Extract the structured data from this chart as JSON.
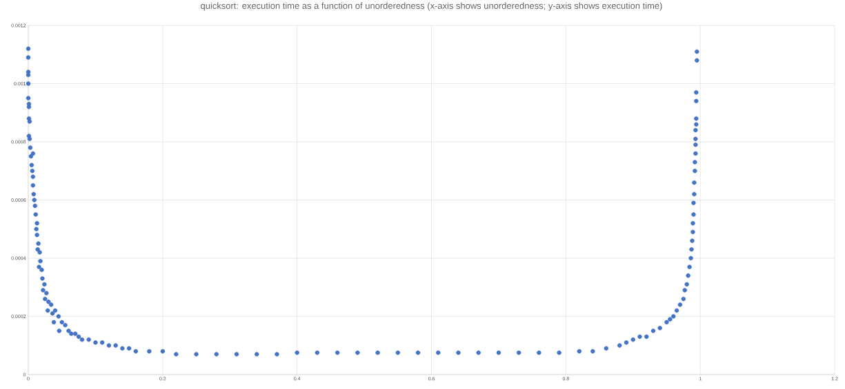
{
  "chart_data": {
    "type": "scatter",
    "title": "quicksort: execution time as a function of unorderedness (x-axis shows unorderedness; y-axis shows execution time)",
    "x": [
      0,
      0,
      0,
      0,
      0,
      0,
      0.001,
      0.001,
      0.001,
      0.002,
      0.001,
      0.002,
      0.003,
      0.004,
      0.007,
      0.005,
      0.006,
      0.007,
      0.007,
      0.008,
      0.009,
      0.01,
      0.011,
      0.013,
      0.012,
      0.013,
      0.015,
      0.014,
      0.017,
      0.018,
      0.016,
      0.02,
      0.021,
      0.024,
      0.022,
      0.027,
      0.025,
      0.03,
      0.034,
      0.029,
      0.036,
      0.04,
      0.045,
      0.038,
      0.05,
      0.055,
      0.046,
      0.06,
      0.064,
      0.07,
      0.075,
      0.08,
      0.09,
      0.1,
      0.11,
      0.12,
      0.13,
      0.14,
      0.15,
      0.16,
      0.18,
      0.2,
      0.22,
      0.25,
      0.28,
      0.31,
      0.34,
      0.37,
      0.4,
      0.43,
      0.46,
      0.49,
      0.52,
      0.55,
      0.58,
      0.61,
      0.64,
      0.67,
      0.7,
      0.73,
      0.76,
      0.79,
      0.82,
      0.84,
      0.86,
      0.88,
      0.89,
      0.9,
      0.91,
      0.92,
      0.93,
      0.94,
      0.95,
      0.955,
      0.96,
      0.965,
      0.97,
      0.975,
      0.977,
      0.98,
      0.982,
      0.984,
      0.986,
      0.987,
      0.988,
      0.989,
      0.989,
      0.99,
      0.99,
      0.991,
      0.991,
      0.992,
      0.992,
      0.993,
      0.993,
      0.993,
      0.993,
      0.994,
      0.994,
      0.994,
      0.994,
      0.995,
      0.995
    ],
    "values": [
      0.00112,
      0.00109,
      0.00104,
      0.00103,
      0.001,
      0.00095,
      0.00093,
      0.00092,
      0.00088,
      0.00087,
      0.00082,
      0.00081,
      0.00078,
      0.00075,
      0.00076,
      0.00072,
      0.0007,
      0.00068,
      0.00065,
      0.00062,
      0.0006,
      0.00058,
      0.00055,
      0.00052,
      0.0005,
      0.00048,
      0.00045,
      0.00043,
      0.00042,
      0.00039,
      0.00037,
      0.00036,
      0.00033,
      0.00031,
      0.00029,
      0.00028,
      0.00026,
      0.00025,
      0.00024,
      0.00022,
      0.00021,
      0.00022,
      0.0002,
      0.00018,
      0.00018,
      0.00017,
      0.00015,
      0.00015,
      0.00014,
      0.00014,
      0.00013,
      0.00012,
      0.00012,
      0.00011,
      0.00011,
      0.0001,
      0.0001,
      9e-05,
      9e-05,
      8e-05,
      8e-05,
      8e-05,
      7e-05,
      7e-05,
      7e-05,
      7e-05,
      7e-05,
      7e-05,
      7.5e-05,
      7.5e-05,
      7.5e-05,
      7.5e-05,
      7.5e-05,
      7.5e-05,
      7.5e-05,
      7.5e-05,
      7.5e-05,
      7.5e-05,
      7.5e-05,
      7.5e-05,
      7.5e-05,
      7.5e-05,
      8e-05,
      8e-05,
      9e-05,
      0.0001,
      0.00011,
      0.00012,
      0.00013,
      0.00013,
      0.00015,
      0.00016,
      0.00018,
      0.00019,
      0.0002,
      0.00022,
      0.00024,
      0.00026,
      0.00029,
      0.00031,
      0.00034,
      0.00037,
      0.0004,
      0.00043,
      0.00046,
      0.00049,
      0.00052,
      0.00055,
      0.00059,
      0.00062,
      0.00066,
      0.0007,
      0.00073,
      0.00076,
      0.00079,
      0.00081,
      0.00084,
      0.00086,
      0.00088,
      0.00094,
      0.00097,
      0.00108,
      0.00111
    ],
    "color": "#4472c4",
    "xlim": [
      0,
      1.2
    ],
    "xticks": [
      0,
      0.2,
      0.4,
      0.6,
      0.8,
      1,
      1.2
    ],
    "ylim": [
      0,
      0.0012
    ],
    "yticks": [
      0,
      0.0002,
      0.0004,
      0.0006,
      0.0008,
      0.001,
      0.0012
    ],
    "grid": true
  }
}
